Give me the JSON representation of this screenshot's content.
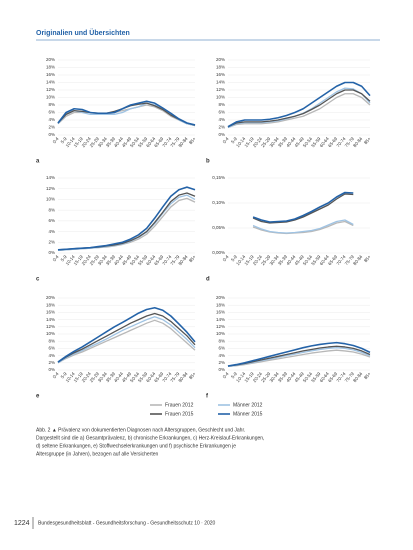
{
  "header": {
    "title": "Originalien und Übersichten"
  },
  "legend": [
    {
      "name": "Frauen 2012",
      "color": "#b8b8b8"
    },
    {
      "name": "Männer 2012",
      "color": "#9fc3e3"
    },
    {
      "name": "Frauen 2015",
      "color": "#555555"
    },
    {
      "name": "Männer 2015",
      "color": "#2463a8"
    }
  ],
  "chart_data": [
    {
      "type": "line",
      "label": "a",
      "categories": [
        "0-4",
        "5-9",
        "10-14",
        "15-19",
        "20-24",
        "25-29",
        "30-34",
        "35-39",
        "40-44",
        "45-49",
        "50-54",
        "55-59",
        "60-64",
        "65-69",
        "70-74",
        "75-79",
        "80-84",
        "85+"
      ],
      "ylim": [
        0,
        20
      ],
      "yticks": [
        {
          "value": 0,
          "label": "0%"
        },
        {
          "value": 2,
          "label": "2%"
        },
        {
          "value": 4,
          "label": "4%"
        },
        {
          "value": 6,
          "label": "6%"
        },
        {
          "value": 8,
          "label": "8%"
        },
        {
          "value": 10,
          "label": "10%"
        },
        {
          "value": 12,
          "label": "12%"
        },
        {
          "value": 14,
          "label": "14%"
        },
        {
          "value": 16,
          "label": "16%"
        },
        {
          "value": 18,
          "label": "18%"
        },
        {
          "value": 20,
          "label": "20%"
        }
      ],
      "series": [
        {
          "values": [
            3,
            5,
            6,
            6,
            6,
            5.5,
            5.5,
            6,
            6.5,
            7,
            7.5,
            8,
            7.5,
            6.5,
            5,
            4,
            3,
            2.5
          ]
        },
        {
          "values": [
            3,
            5.5,
            6.5,
            6,
            5.5,
            5.5,
            5.5,
            5.5,
            6,
            7,
            7.5,
            8.5,
            8,
            7,
            5.5,
            4,
            3,
            2.5
          ]
        },
        {
          "values": [
            3.2,
            5.5,
            6.5,
            6.3,
            6,
            5.8,
            5.8,
            6.3,
            7,
            7.8,
            8.2,
            8.5,
            7.8,
            6.8,
            5.3,
            4.2,
            3.2,
            2.6
          ]
        },
        {
          "values": [
            3.2,
            6,
            7,
            6.8,
            6,
            5.8,
            5.8,
            6,
            7,
            8,
            8.5,
            9,
            8.5,
            7.2,
            5.8,
            4.3,
            3.2,
            2.7
          ]
        }
      ]
    },
    {
      "type": "line",
      "label": "b",
      "categories": [
        "0-4",
        "5-9",
        "10-14",
        "15-19",
        "20-24",
        "25-29",
        "30-34",
        "35-39",
        "40-44",
        "45-49",
        "50-54",
        "55-59",
        "60-64",
        "65-69",
        "70-74",
        "75-79",
        "80-84",
        "85+"
      ],
      "ylim": [
        0,
        20
      ],
      "yticks": [
        {
          "value": 0,
          "label": "0%"
        },
        {
          "value": 2,
          "label": "2%"
        },
        {
          "value": 4,
          "label": "4%"
        },
        {
          "value": 6,
          "label": "6%"
        },
        {
          "value": 8,
          "label": "8%"
        },
        {
          "value": 10,
          "label": "10%"
        },
        {
          "value": 12,
          "label": "12%"
        },
        {
          "value": 14,
          "label": "14%"
        },
        {
          "value": 16,
          "label": "16%"
        },
        {
          "value": 18,
          "label": "18%"
        },
        {
          "value": 20,
          "label": "20%"
        }
      ],
      "series": [
        {
          "values": [
            2,
            2.8,
            3,
            3,
            3,
            3.2,
            3.5,
            4,
            4.5,
            5,
            6,
            7,
            8.5,
            10,
            11,
            11,
            10,
            8
          ]
        },
        {
          "values": [
            2,
            3,
            3.3,
            3.3,
            3.3,
            3.5,
            3.8,
            4.3,
            5,
            5.8,
            7,
            8.5,
            10,
            11.5,
            12.5,
            12.3,
            11,
            8.5
          ]
        },
        {
          "values": [
            2.2,
            3.2,
            3.5,
            3.5,
            3.5,
            3.7,
            4,
            4.5,
            5,
            5.7,
            6.8,
            8,
            9.5,
            11,
            12,
            12,
            11,
            9
          ]
        },
        {
          "values": [
            2.2,
            3.5,
            4,
            4,
            4,
            4.2,
            4.6,
            5.2,
            6,
            7,
            8.5,
            10,
            11.5,
            13,
            14,
            14,
            13,
            10.5
          ]
        }
      ]
    },
    {
      "type": "line",
      "label": "c",
      "categories": [
        "0-4",
        "5-9",
        "10-14",
        "15-19",
        "20-24",
        "25-29",
        "30-34",
        "35-39",
        "40-44",
        "45-49",
        "50-54",
        "55-59",
        "60-64",
        "65-69",
        "70-74",
        "75-79",
        "80-84",
        "85+"
      ],
      "ylim": [
        0,
        14
      ],
      "yticks": [
        {
          "value": 0,
          "label": "0%"
        },
        {
          "value": 2,
          "label": "2%"
        },
        {
          "value": 4,
          "label": "4%"
        },
        {
          "value": 6,
          "label": "6%"
        },
        {
          "value": 8,
          "label": "8%"
        },
        {
          "value": 10,
          "label": "10%"
        },
        {
          "value": 12,
          "label": "12%"
        },
        {
          "value": 14,
          "label": "14%"
        }
      ],
      "series": [
        {
          "values": [
            0.5,
            0.6,
            0.7,
            0.8,
            0.9,
            1,
            1.1,
            1.3,
            1.6,
            2,
            2.6,
            3.5,
            5,
            6.8,
            8.6,
            9.8,
            10.2,
            9.5
          ]
        },
        {
          "values": [
            0.5,
            0.6,
            0.7,
            0.8,
            0.9,
            1,
            1.2,
            1.4,
            1.7,
            2.2,
            2.9,
            3.9,
            5.5,
            7.4,
            9.2,
            10.4,
            10.8,
            10
          ]
        },
        {
          "values": [
            0.6,
            0.7,
            0.8,
            0.9,
            1,
            1.1,
            1.3,
            1.5,
            1.8,
            2.3,
            3,
            4,
            5.7,
            7.6,
            9.6,
            10.8,
            11.2,
            10.6
          ]
        },
        {
          "values": [
            0.6,
            0.7,
            0.8,
            0.9,
            1,
            1.2,
            1.4,
            1.7,
            2,
            2.6,
            3.4,
            4.6,
            6.5,
            8.6,
            10.6,
            11.8,
            12.3,
            11.8
          ]
        }
      ]
    },
    {
      "type": "line",
      "label": "d",
      "categories": [
        "0-4",
        "5-9",
        "10-14",
        "15-19",
        "20-24",
        "25-29",
        "30-34",
        "35-39",
        "40-44",
        "45-49",
        "50-54",
        "55-59",
        "60-64",
        "65-69",
        "70-74",
        "75-79",
        "80-84",
        "85+"
      ],
      "ylim": [
        0,
        0.15
      ],
      "yticks": [
        {
          "value": 0,
          "label": "0,00%"
        },
        {
          "value": 0.05,
          "label": "0,05%"
        },
        {
          "value": 0.1,
          "label": "0,10%"
        },
        {
          "value": 0.15,
          "label": "0,15%"
        }
      ],
      "series": [
        {
          "values": [
            null,
            null,
            null,
            0.052,
            0.046,
            0.042,
            0.04,
            0.039,
            0.04,
            0.041,
            0.043,
            0.047,
            0.053,
            0.06,
            0.063,
            0.055,
            null,
            null
          ]
        },
        {
          "values": [
            null,
            null,
            null,
            0.055,
            0.048,
            0.043,
            0.041,
            0.04,
            0.041,
            0.043,
            0.045,
            0.049,
            0.056,
            0.063,
            0.066,
            0.057,
            null,
            null
          ]
        },
        {
          "values": [
            null,
            null,
            null,
            0.07,
            0.063,
            0.06,
            0.061,
            0.062,
            0.066,
            0.072,
            0.08,
            0.088,
            0.096,
            0.108,
            0.118,
            0.117,
            null,
            null
          ]
        },
        {
          "values": [
            null,
            null,
            null,
            0.072,
            0.066,
            0.062,
            0.063,
            0.064,
            0.068,
            0.075,
            0.083,
            0.092,
            0.1,
            0.112,
            0.121,
            0.12,
            null,
            null
          ]
        }
      ]
    },
    {
      "type": "line",
      "label": "e",
      "categories": [
        "0-4",
        "5-9",
        "10-14",
        "15-19",
        "20-24",
        "25-29",
        "30-34",
        "35-39",
        "40-44",
        "45-49",
        "50-54",
        "55-59",
        "60-64",
        "65-69",
        "70-74",
        "75-79",
        "80-84",
        "85+"
      ],
      "ylim": [
        0,
        20
      ],
      "yticks": [
        {
          "value": 0,
          "label": "0%"
        },
        {
          "value": 2,
          "label": "2%"
        },
        {
          "value": 4,
          "label": "4%"
        },
        {
          "value": 6,
          "label": "6%"
        },
        {
          "value": 8,
          "label": "8%"
        },
        {
          "value": 10,
          "label": "10%"
        },
        {
          "value": 12,
          "label": "12%"
        },
        {
          "value": 14,
          "label": "14%"
        },
        {
          "value": 16,
          "label": "16%"
        },
        {
          "value": 18,
          "label": "18%"
        },
        {
          "value": 20,
          "label": "20%"
        }
      ],
      "series": [
        {
          "values": [
            2,
            3.2,
            4.2,
            5,
            6,
            7,
            8,
            9,
            10,
            11,
            12,
            13,
            13.8,
            13,
            11.5,
            9.5,
            7.5,
            5.5
          ]
        },
        {
          "values": [
            2,
            3.4,
            4.5,
            5.4,
            6.5,
            7.5,
            8.6,
            9.8,
            11,
            12,
            13,
            14,
            14.8,
            14,
            12.5,
            10.5,
            8.5,
            6.2
          ]
        },
        {
          "values": [
            2.2,
            3.6,
            4.8,
            5.8,
            7,
            8.2,
            9.4,
            10.6,
            11.8,
            13,
            14,
            15,
            15.7,
            15,
            13.5,
            11.5,
            9.5,
            7
          ]
        },
        {
          "values": [
            2.2,
            3.8,
            5.2,
            6.4,
            7.8,
            9.2,
            10.6,
            12,
            13.2,
            14.5,
            15.8,
            16.8,
            17.3,
            16.6,
            15,
            12.8,
            10.5,
            7.8
          ]
        }
      ]
    },
    {
      "type": "line",
      "label": "f",
      "categories": [
        "0-4",
        "5-9",
        "10-14",
        "15-19",
        "20-24",
        "25-29",
        "30-34",
        "35-39",
        "40-44",
        "45-49",
        "50-54",
        "55-59",
        "60-64",
        "65-69",
        "70-74",
        "75-79",
        "80-84",
        "85+"
      ],
      "ylim": [
        0,
        20
      ],
      "yticks": [
        {
          "value": 0,
          "label": "0%"
        },
        {
          "value": 2,
          "label": "2%"
        },
        {
          "value": 4,
          "label": "4%"
        },
        {
          "value": 6,
          "label": "6%"
        },
        {
          "value": 8,
          "label": "8%"
        },
        {
          "value": 10,
          "label": "10%"
        },
        {
          "value": 12,
          "label": "12%"
        },
        {
          "value": 14,
          "label": "14%"
        },
        {
          "value": 16,
          "label": "16%"
        },
        {
          "value": 18,
          "label": "18%"
        },
        {
          "value": 20,
          "label": "20%"
        }
      ],
      "series": [
        {
          "values": [
            1,
            1.2,
            1.5,
            1.9,
            2.3,
            2.7,
            3.1,
            3.5,
            3.9,
            4.3,
            4.7,
            5,
            5.3,
            5.5,
            5.3,
            5,
            4.4,
            3.6
          ]
        },
        {
          "values": [
            1,
            1.3,
            1.7,
            2.1,
            2.6,
            3,
            3.5,
            4,
            4.4,
            4.9,
            5.3,
            5.7,
            6,
            6.2,
            6,
            5.6,
            4.9,
            4
          ]
        },
        {
          "values": [
            1.1,
            1.4,
            1.8,
            2.3,
            2.8,
            3.3,
            3.8,
            4.3,
            4.8,
            5.3,
            5.7,
            6.1,
            6.4,
            6.6,
            6.4,
            6,
            5.3,
            4.3
          ]
        },
        {
          "values": [
            1.1,
            1.5,
            2,
            2.6,
            3.2,
            3.8,
            4.4,
            5,
            5.6,
            6.2,
            6.7,
            7.1,
            7.4,
            7.6,
            7.3,
            6.8,
            6,
            4.9
          ]
        }
      ]
    }
  ],
  "caption": {
    "lines": [
      "Abb. 2 ▲ Prävalenz von dokumentierten Diagnosen nach Altersgruppen, Geschlecht und Jahr.",
      "Dargestellt sind die a) Gesamtprävalenz, b) chronische Erkrankungen, c) Herz-Kreislauf-Erkrankungen,",
      "d) seltene Erkrankungen, e) Stoffwechselerkrankungen und f) psychische Erkrankungen je",
      "Altersgruppe (in Jahren), bezogen auf alle Versicherten"
    ]
  },
  "footer": {
    "page": "1224",
    "journal": "Bundesgesundheitsblatt - Gesundheitsforschung - Gesundheitsschutz 10 · 2020"
  }
}
